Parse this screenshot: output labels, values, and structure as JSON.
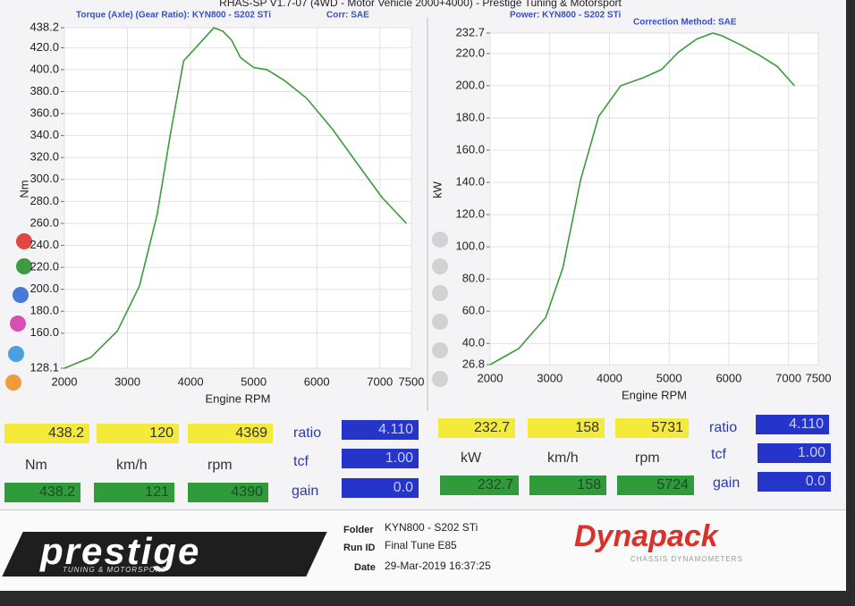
{
  "header": {
    "title": "RHAS-SP V1.7-07 (4WD - Motor Vehicle 2000+4000) - Prestige Tuning & Motorsport"
  },
  "chart_data": [
    {
      "type": "line",
      "subtitle": "Torque (Axle) (Gear Ratio): KYN800 - S202 STi",
      "subtitle2": "Corr: SAE",
      "y_label": "Nm",
      "x_label": "Engine RPM",
      "color": "#3d9a3a",
      "grid": true,
      "x": [
        2000,
        2420,
        2840,
        3190,
        3470,
        3680,
        3890,
        4100,
        4369,
        4510,
        4650,
        4790,
        5000,
        5210,
        5490,
        5840,
        6260,
        6610,
        7030,
        7420
      ],
      "values": [
        128.1,
        138,
        162,
        203,
        268,
        341,
        408,
        421,
        438.2,
        435,
        427,
        411,
        402,
        400,
        390,
        374,
        345,
        317,
        284,
        260
      ],
      "xlim": [
        2000,
        7500
      ],
      "xticks": [
        2000,
        3000,
        4000,
        5000,
        6000,
        7000,
        7500
      ],
      "ylim": [
        128.1,
        438.2
      ],
      "yticks": [
        128.1,
        {
          "value": 160,
          "label": "160.0"
        },
        {
          "value": 180,
          "label": "180.0"
        },
        {
          "value": 200,
          "label": "200.0"
        },
        {
          "value": 220,
          "label": "220.0"
        },
        {
          "value": 240,
          "label": "240.0"
        },
        {
          "value": 260,
          "label": "260.0"
        },
        {
          "value": 280,
          "label": "280.0"
        },
        {
          "value": 300,
          "label": "300.0"
        },
        {
          "value": 320,
          "label": "320.0"
        },
        {
          "value": 340,
          "label": "340.0"
        },
        {
          "value": 360,
          "label": "360.0"
        },
        {
          "value": 380,
          "label": "380.0"
        },
        {
          "value": 400,
          "label": "400.0"
        },
        {
          "value": 420,
          "label": "420.0"
        },
        438.2
      ]
    },
    {
      "type": "line",
      "subtitle": "Power: KYN800 - S202 STi",
      "subtitle2": "Correction Method: SAE",
      "y_label": "kW",
      "x_label": "Engine RPM",
      "color": "#3d9a3a",
      "grid": true,
      "x": [
        2000,
        2480,
        2930,
        3220,
        3520,
        3820,
        4190,
        4570,
        4870,
        5160,
        5460,
        5731,
        5890,
        6220,
        6510,
        6810,
        7100
      ],
      "values": [
        26.8,
        36.8,
        56,
        87,
        142,
        181,
        200,
        205,
        210,
        221,
        229,
        232.7,
        231,
        225,
        219,
        212,
        200
      ],
      "xlim": [
        2000,
        7500
      ],
      "xticks": [
        2000,
        3000,
        4000,
        5000,
        6000,
        7000,
        7500
      ],
      "ylim": [
        26.8,
        232.7
      ],
      "yticks": [
        26.8,
        {
          "value": 40,
          "label": "40.0"
        },
        {
          "value": 60,
          "label": "60.0"
        },
        {
          "value": 80,
          "label": "80.0"
        },
        {
          "value": 100,
          "label": "100.0"
        },
        {
          "value": 120,
          "label": "120.0"
        },
        {
          "value": 140,
          "label": "140.0"
        },
        {
          "value": 160,
          "label": "160.0"
        },
        {
          "value": 180,
          "label": "180.0"
        },
        {
          "value": 200,
          "label": "200.0"
        },
        {
          "value": 220,
          "label": "220.0"
        },
        232.7
      ]
    }
  ],
  "readouts": {
    "left": {
      "max": [
        "438.2",
        "120",
        "4369"
      ],
      "units": [
        "Nm",
        "km/h",
        "rpm"
      ],
      "current": [
        "438.2",
        "121",
        "4390"
      ],
      "ratio_label": "ratio",
      "tcf_label": "tcf",
      "gain_label": "gain",
      "ratio": "4.110",
      "tcf": "1.00",
      "gain": "0.0"
    },
    "right": {
      "max": [
        "232.7",
        "158",
        "5731"
      ],
      "units": [
        "kW",
        "km/h",
        "rpm"
      ],
      "current": [
        "232.7",
        "158",
        "5724"
      ],
      "ratio_label": "ratio",
      "tcf_label": "tcf",
      "gain_label": "gain",
      "ratio": "4.110",
      "tcf": "1.00",
      "gain": "0.0"
    }
  },
  "footer": {
    "brand": "prestige",
    "tagline": "TUNING & MOTORSPORT",
    "fields": [
      {
        "label": "Folder",
        "value": "KYN800 - S202 STi"
      },
      {
        "label": "Run ID",
        "value": "Final Tune E85"
      },
      {
        "label": "Date",
        "value": "29-Mar-2019  16:37:25"
      }
    ],
    "dyno_brand": "Dynapack",
    "dyno_tagline": "CHASSIS DYNAMOMETERS"
  }
}
